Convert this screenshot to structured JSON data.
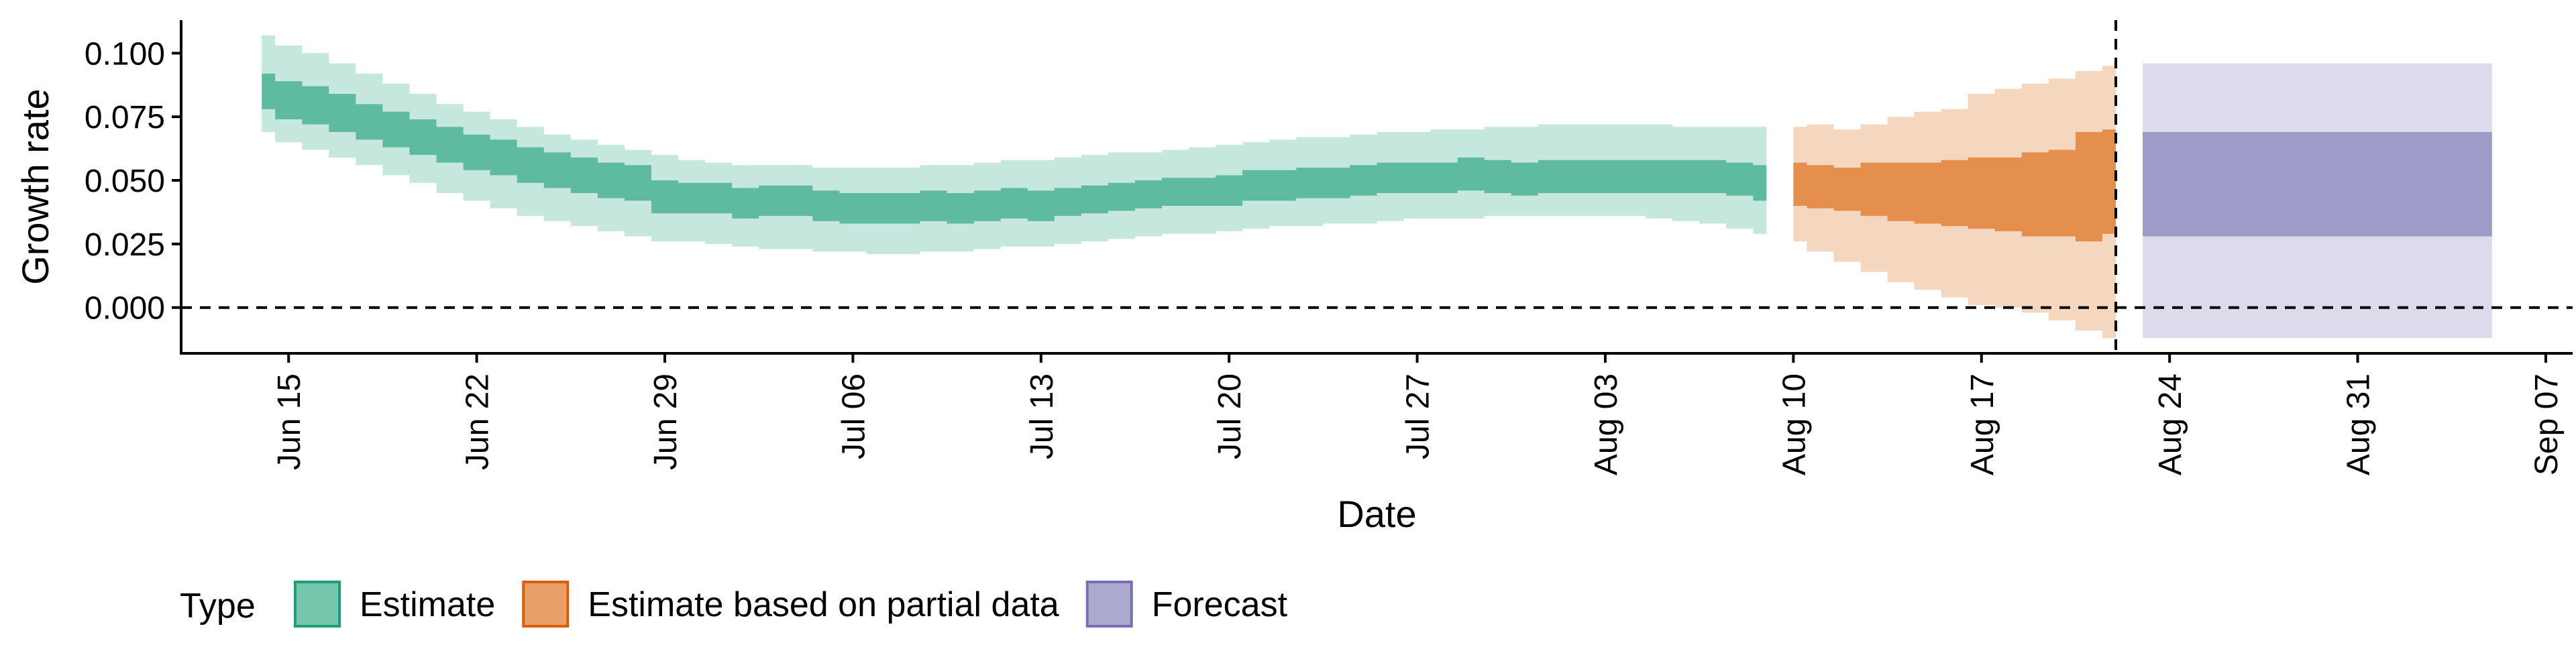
{
  "chart_data": {
    "type": "area",
    "xlabel": "Date",
    "ylabel": "Growth rate",
    "x_range": [
      "2020-06-11",
      "2020-09-08"
    ],
    "ylim": [
      -0.018,
      0.113
    ],
    "y_ticks": [
      0.0,
      0.025,
      0.05,
      0.075,
      0.1
    ],
    "y_tick_labels": [
      "0.000",
      "0.025",
      "0.050",
      "0.075",
      "0.100"
    ],
    "x_ticks": [
      "2020-06-15",
      "2020-06-22",
      "2020-06-29",
      "2020-07-06",
      "2020-07-13",
      "2020-07-20",
      "2020-07-27",
      "2020-08-03",
      "2020-08-10",
      "2020-08-17",
      "2020-08-24",
      "2020-08-31",
      "2020-09-07"
    ],
    "x_tick_labels": [
      "Jun 15",
      "Jun 22",
      "Jun 29",
      "Jul 06",
      "Jul 13",
      "Jul 20",
      "Jul 27",
      "Aug 03",
      "Aug 10",
      "Aug 17",
      "Aug 24",
      "Aug 31",
      "Sep 07"
    ],
    "reference_lines": {
      "horizontal_y": 0.0,
      "vertical_x": "2020-08-22"
    },
    "grid": false,
    "legend": {
      "title": "Type",
      "position": "bottom-left"
    },
    "series": [
      {
        "name": "Estimate",
        "color": "#1b9e77",
        "x": [
          "2020-06-14",
          "2020-06-15",
          "2020-06-16",
          "2020-06-17",
          "2020-06-18",
          "2020-06-19",
          "2020-06-20",
          "2020-06-21",
          "2020-06-22",
          "2020-06-23",
          "2020-06-24",
          "2020-06-25",
          "2020-06-26",
          "2020-06-27",
          "2020-06-28",
          "2020-06-29",
          "2020-06-30",
          "2020-07-01",
          "2020-07-02",
          "2020-07-03",
          "2020-07-04",
          "2020-07-05",
          "2020-07-06",
          "2020-07-07",
          "2020-07-08",
          "2020-07-09",
          "2020-07-10",
          "2020-07-11",
          "2020-07-12",
          "2020-07-13",
          "2020-07-14",
          "2020-07-15",
          "2020-07-16",
          "2020-07-17",
          "2020-07-18",
          "2020-07-19",
          "2020-07-20",
          "2020-07-21",
          "2020-07-22",
          "2020-07-23",
          "2020-07-24",
          "2020-07-25",
          "2020-07-26",
          "2020-07-27",
          "2020-07-28",
          "2020-07-29",
          "2020-07-30",
          "2020-07-31",
          "2020-08-01",
          "2020-08-02",
          "2020-08-03",
          "2020-08-04",
          "2020-08-05",
          "2020-08-06",
          "2020-08-07",
          "2020-08-08",
          "2020-08-09"
        ],
        "inner_low": [
          0.078,
          0.074,
          0.072,
          0.069,
          0.066,
          0.063,
          0.06,
          0.057,
          0.054,
          0.052,
          0.049,
          0.047,
          0.045,
          0.043,
          0.042,
          0.037,
          0.037,
          0.037,
          0.035,
          0.036,
          0.036,
          0.034,
          0.033,
          0.033,
          0.033,
          0.034,
          0.033,
          0.034,
          0.035,
          0.034,
          0.036,
          0.037,
          0.038,
          0.039,
          0.04,
          0.04,
          0.04,
          0.042,
          0.042,
          0.043,
          0.043,
          0.044,
          0.045,
          0.045,
          0.045,
          0.046,
          0.045,
          0.044,
          0.045,
          0.045,
          0.045,
          0.045,
          0.045,
          0.045,
          0.045,
          0.044,
          0.042
        ],
        "inner_high": [
          0.092,
          0.089,
          0.087,
          0.084,
          0.08,
          0.077,
          0.074,
          0.071,
          0.068,
          0.066,
          0.063,
          0.061,
          0.059,
          0.057,
          0.056,
          0.05,
          0.049,
          0.049,
          0.047,
          0.048,
          0.048,
          0.046,
          0.045,
          0.045,
          0.045,
          0.046,
          0.045,
          0.046,
          0.047,
          0.046,
          0.047,
          0.048,
          0.049,
          0.05,
          0.051,
          0.051,
          0.052,
          0.054,
          0.054,
          0.055,
          0.055,
          0.056,
          0.057,
          0.057,
          0.057,
          0.059,
          0.058,
          0.057,
          0.058,
          0.058,
          0.058,
          0.058,
          0.058,
          0.058,
          0.058,
          0.057,
          0.056
        ],
        "outer_low": [
          0.069,
          0.065,
          0.062,
          0.059,
          0.056,
          0.052,
          0.049,
          0.045,
          0.042,
          0.039,
          0.036,
          0.034,
          0.032,
          0.03,
          0.028,
          0.026,
          0.026,
          0.025,
          0.024,
          0.023,
          0.023,
          0.022,
          0.022,
          0.021,
          0.021,
          0.022,
          0.022,
          0.023,
          0.024,
          0.024,
          0.025,
          0.026,
          0.027,
          0.028,
          0.029,
          0.029,
          0.03,
          0.031,
          0.032,
          0.032,
          0.033,
          0.033,
          0.034,
          0.035,
          0.035,
          0.035,
          0.036,
          0.036,
          0.036,
          0.036,
          0.036,
          0.036,
          0.035,
          0.034,
          0.033,
          0.031,
          0.029
        ],
        "outer_high": [
          0.107,
          0.103,
          0.1,
          0.096,
          0.092,
          0.088,
          0.084,
          0.08,
          0.077,
          0.074,
          0.071,
          0.068,
          0.066,
          0.064,
          0.062,
          0.06,
          0.058,
          0.057,
          0.056,
          0.056,
          0.056,
          0.055,
          0.055,
          0.055,
          0.055,
          0.056,
          0.056,
          0.057,
          0.058,
          0.058,
          0.059,
          0.06,
          0.061,
          0.061,
          0.062,
          0.063,
          0.064,
          0.065,
          0.066,
          0.067,
          0.067,
          0.068,
          0.069,
          0.069,
          0.07,
          0.07,
          0.071,
          0.071,
          0.072,
          0.072,
          0.072,
          0.072,
          0.072,
          0.071,
          0.071,
          0.071,
          0.071
        ]
      },
      {
        "name": "Estimate based on partial data",
        "color": "#d95f02",
        "x": [
          "2020-08-10",
          "2020-08-11",
          "2020-08-12",
          "2020-08-13",
          "2020-08-14",
          "2020-08-15",
          "2020-08-16",
          "2020-08-17",
          "2020-08-18",
          "2020-08-19",
          "2020-08-20",
          "2020-08-21",
          "2020-08-22"
        ],
        "inner_low": [
          0.04,
          0.039,
          0.038,
          0.036,
          0.034,
          0.033,
          0.032,
          0.031,
          0.03,
          0.028,
          0.028,
          0.026,
          0.029
        ],
        "inner_high": [
          0.057,
          0.056,
          0.055,
          0.057,
          0.057,
          0.057,
          0.058,
          0.059,
          0.059,
          0.061,
          0.062,
          0.069,
          0.07
        ],
        "outer_low": [
          0.026,
          0.022,
          0.018,
          0.014,
          0.01,
          0.007,
          0.004,
          0.001,
          0.0,
          -0.002,
          -0.005,
          -0.009,
          -0.012
        ],
        "outer_high": [
          0.071,
          0.072,
          0.07,
          0.072,
          0.075,
          0.077,
          0.078,
          0.084,
          0.086,
          0.088,
          0.09,
          0.093,
          0.095
        ]
      },
      {
        "name": "Forecast",
        "color": "#7570b3",
        "x": [
          "2020-08-23",
          "2020-09-05"
        ],
        "inner_low": [
          0.028,
          0.028
        ],
        "inner_high": [
          0.069,
          0.069
        ],
        "outer_low": [
          -0.012,
          -0.012
        ],
        "outer_high": [
          0.096,
          0.096
        ]
      }
    ]
  }
}
